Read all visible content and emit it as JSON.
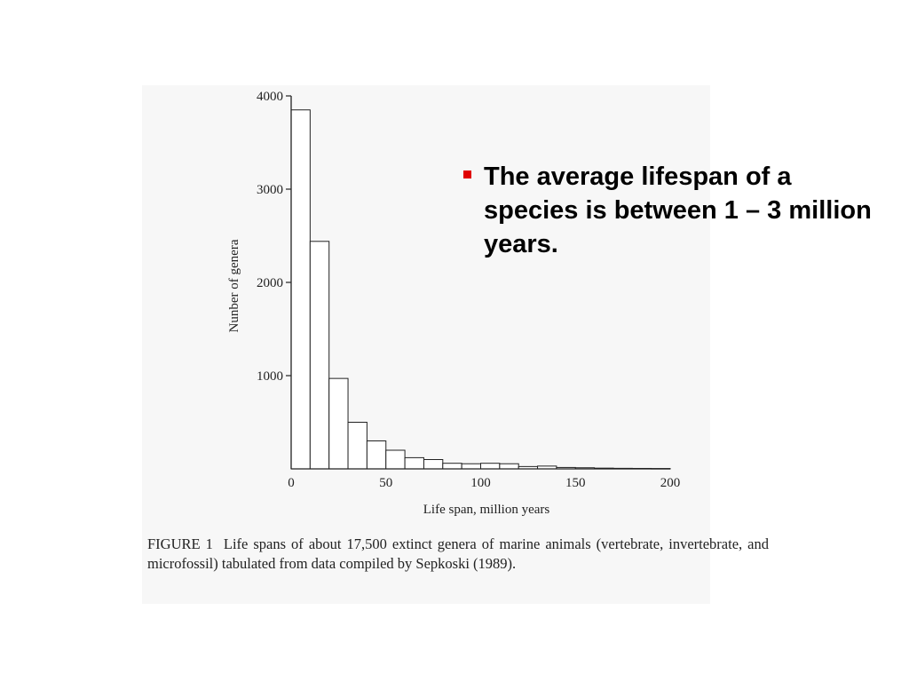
{
  "slide": {
    "bullet_text": "The average lifespan of a species is between 1 – 3 million years.",
    "bullet_color": "#e00000",
    "caption_label": "FIGURE 1",
    "caption_text": "Life spans of about 17,500 extinct genera of marine animals (vertebrate, invertebrate, and microfossil) tabulated from data compiled by Sepkoski (1989)."
  },
  "chart_data": {
    "type": "bar",
    "xlabel": "Life span, million years",
    "ylabel": "Nunber of genera",
    "xlim": [
      0,
      200
    ],
    "ylim": [
      0,
      4000
    ],
    "x_ticks": [
      0,
      50,
      100,
      150,
      200
    ],
    "y_ticks": [
      1000,
      2000,
      3000,
      4000
    ],
    "bin_width": 10,
    "bins": [
      {
        "start": 0,
        "end": 10,
        "value": 3850
      },
      {
        "start": 10,
        "end": 20,
        "value": 2440
      },
      {
        "start": 20,
        "end": 30,
        "value": 970
      },
      {
        "start": 30,
        "end": 40,
        "value": 500
      },
      {
        "start": 40,
        "end": 50,
        "value": 300
      },
      {
        "start": 50,
        "end": 60,
        "value": 200
      },
      {
        "start": 60,
        "end": 70,
        "value": 120
      },
      {
        "start": 70,
        "end": 80,
        "value": 100
      },
      {
        "start": 80,
        "end": 90,
        "value": 60
      },
      {
        "start": 90,
        "end": 100,
        "value": 55
      },
      {
        "start": 100,
        "end": 110,
        "value": 60
      },
      {
        "start": 110,
        "end": 120,
        "value": 55
      },
      {
        "start": 120,
        "end": 130,
        "value": 25
      },
      {
        "start": 130,
        "end": 140,
        "value": 30
      },
      {
        "start": 140,
        "end": 150,
        "value": 15
      },
      {
        "start": 150,
        "end": 160,
        "value": 12
      },
      {
        "start": 160,
        "end": 170,
        "value": 8
      },
      {
        "start": 170,
        "end": 180,
        "value": 6
      },
      {
        "start": 180,
        "end": 190,
        "value": 5
      },
      {
        "start": 190,
        "end": 200,
        "value": 4
      }
    ],
    "grid": false,
    "bar_fill": "#ffffff",
    "bar_stroke": "#222222"
  }
}
